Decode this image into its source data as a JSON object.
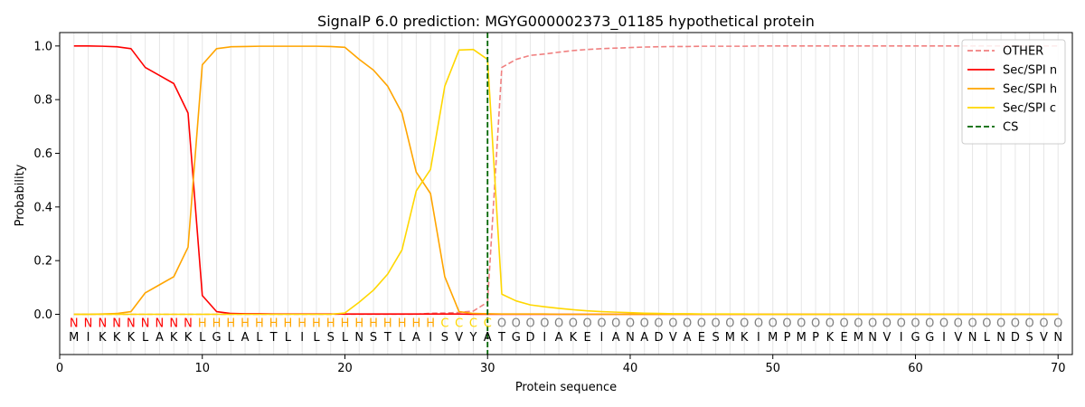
{
  "chart_data": {
    "type": "line",
    "title": "SignalP 6.0 prediction: MGYG000002373_01185 hypothetical protein",
    "xlabel": "Protein sequence",
    "ylabel": "Probability",
    "xlim": [
      0,
      71
    ],
    "ylim": [
      -0.15,
      1.05
    ],
    "xticks": [
      0,
      10,
      20,
      30,
      40,
      50,
      60,
      70
    ],
    "yticks": [
      0.0,
      0.2,
      0.4,
      0.6,
      0.8,
      1.0
    ],
    "ytick_labels": [
      "0.0",
      "0.2",
      "0.4",
      "0.6",
      "0.8",
      "1.0"
    ],
    "grid": "vertical lines at each residue",
    "legend_position": "top-right",
    "sequence": [
      "M",
      "I",
      "K",
      "K",
      "K",
      "L",
      "A",
      "K",
      "K",
      "L",
      "G",
      "L",
      "A",
      "L",
      "T",
      "L",
      "I",
      "L",
      "S",
      "L",
      "N",
      "S",
      "T",
      "L",
      "A",
      "I",
      "S",
      "V",
      "Y",
      "A",
      "T",
      "G",
      "D",
      "I",
      "A",
      "K",
      "E",
      "I",
      "A",
      "N",
      "A",
      "D",
      "V",
      "A",
      "E",
      "S",
      "M",
      "K",
      "I",
      "M",
      "P",
      "M",
      "P",
      "K",
      "E",
      "M",
      "N",
      "V",
      "I",
      "G",
      "G",
      "I",
      "V",
      "N",
      "L",
      "N",
      "D",
      "S",
      "V",
      "N"
    ],
    "regions": [
      "N",
      "N",
      "N",
      "N",
      "N",
      "N",
      "N",
      "N",
      "N",
      "H",
      "H",
      "H",
      "H",
      "H",
      "H",
      "H",
      "H",
      "H",
      "H",
      "H",
      "H",
      "H",
      "H",
      "H",
      "H",
      "H",
      "C",
      "C",
      "C",
      "C",
      "O",
      "O",
      "O",
      "O",
      "O",
      "O",
      "O",
      "O",
      "O",
      "O",
      "O",
      "O",
      "O",
      "O",
      "O",
      "O",
      "O",
      "O",
      "O",
      "O",
      "O",
      "O",
      "O",
      "O",
      "O",
      "O",
      "O",
      "O",
      "O",
      "O",
      "O",
      "O",
      "O",
      "O",
      "O",
      "O",
      "O",
      "O",
      "O",
      "O"
    ],
    "region_colors": {
      "N": "#ff0000",
      "H": "#ffa500",
      "C": "#ffd700",
      "O": "#808080"
    },
    "series": [
      {
        "name": "OTHER",
        "color": "#f08080",
        "dash": true,
        "values": [
          0.0,
          0.0,
          0.0,
          0.0,
          0.0,
          0.0,
          0.0,
          0.0,
          0.0,
          0.0,
          0.0,
          0.0,
          0.0,
          0.0,
          0.0,
          0.0,
          0.0,
          0.0,
          0.0,
          0.0,
          0.0,
          0.0,
          0.0,
          0.0,
          0.0,
          0.004,
          0.005,
          0.007,
          0.012,
          0.045,
          0.92,
          0.95,
          0.965,
          0.97,
          0.977,
          0.983,
          0.987,
          0.99,
          0.992,
          0.994,
          0.996,
          0.997,
          0.998,
          0.998,
          0.999,
          0.999,
          0.999,
          0.999,
          1.0,
          1.0,
          1.0,
          1.0,
          1.0,
          1.0,
          1.0,
          1.0,
          1.0,
          1.0,
          1.0,
          1.0,
          1.0,
          1.0,
          1.0,
          1.0,
          1.0,
          1.0,
          1.0,
          1.0,
          1.0,
          1.0
        ]
      },
      {
        "name": "Sec/SPI n",
        "color": "#ff0000",
        "dash": false,
        "values": [
          1.0,
          1.0,
          0.999,
          0.997,
          0.99,
          0.92,
          0.89,
          0.86,
          0.75,
          0.07,
          0.01,
          0.003,
          0.002,
          0.002,
          0.001,
          0.001,
          0.001,
          0.001,
          0.001,
          0.001,
          0.001,
          0.001,
          0.001,
          0.001,
          0.001,
          0.001,
          0.001,
          0.001,
          0.0,
          0.0,
          0.0,
          0.0,
          0.0,
          0.0,
          0.0,
          0.0,
          0.0,
          0.0,
          0.0,
          0.0,
          0.0,
          0.0,
          0.0,
          0.0,
          0.0,
          0.0,
          0.0,
          0.0,
          0.0,
          0.0,
          0.0,
          0.0,
          0.0,
          0.0,
          0.0,
          0.0,
          0.0,
          0.0,
          0.0,
          0.0,
          0.0,
          0.0,
          0.0,
          0.0,
          0.0,
          0.0,
          0.0,
          0.0,
          0.0,
          0.0
        ]
      },
      {
        "name": "Sec/SPI h",
        "color": "#ffa500",
        "dash": false,
        "values": [
          0.0,
          0.0,
          0.001,
          0.003,
          0.01,
          0.08,
          0.11,
          0.14,
          0.25,
          0.93,
          0.99,
          0.997,
          0.998,
          0.999,
          0.999,
          0.999,
          0.999,
          0.999,
          0.998,
          0.995,
          0.95,
          0.91,
          0.85,
          0.75,
          0.53,
          0.45,
          0.14,
          0.01,
          0.003,
          0.002,
          0.001,
          0.001,
          0.001,
          0.001,
          0.0,
          0.0,
          0.0,
          0.0,
          0.0,
          0.0,
          0.0,
          0.0,
          0.0,
          0.0,
          0.0,
          0.0,
          0.0,
          0.0,
          0.0,
          0.0,
          0.0,
          0.0,
          0.0,
          0.0,
          0.0,
          0.0,
          0.0,
          0.0,
          0.0,
          0.0,
          0.0,
          0.0,
          0.0,
          0.0,
          0.0,
          0.0,
          0.0,
          0.0,
          0.0,
          0.0
        ]
      },
      {
        "name": "Sec/SPI c",
        "color": "#ffd700",
        "dash": false,
        "values": [
          0.0,
          0.0,
          0.0,
          0.0,
          0.0,
          0.0,
          0.0,
          0.0,
          0.0,
          0.0,
          0.0,
          0.0,
          0.0,
          0.0,
          0.0,
          0.0,
          0.0,
          0.0,
          0.0,
          0.005,
          0.045,
          0.09,
          0.15,
          0.24,
          0.46,
          0.54,
          0.85,
          0.985,
          0.987,
          0.95,
          0.075,
          0.05,
          0.035,
          0.028,
          0.022,
          0.017,
          0.013,
          0.01,
          0.008,
          0.006,
          0.004,
          0.003,
          0.002,
          0.002,
          0.001,
          0.001,
          0.001,
          0.001,
          0.0,
          0.0,
          0.0,
          0.0,
          0.0,
          0.0,
          0.0,
          0.0,
          0.0,
          0.0,
          0.0,
          0.0,
          0.0,
          0.0,
          0.0,
          0.0,
          0.0,
          0.0,
          0.0,
          0.0,
          0.0,
          0.0
        ]
      }
    ],
    "cs": {
      "name": "CS",
      "x": 30,
      "color": "#006400",
      "dash": true
    }
  }
}
